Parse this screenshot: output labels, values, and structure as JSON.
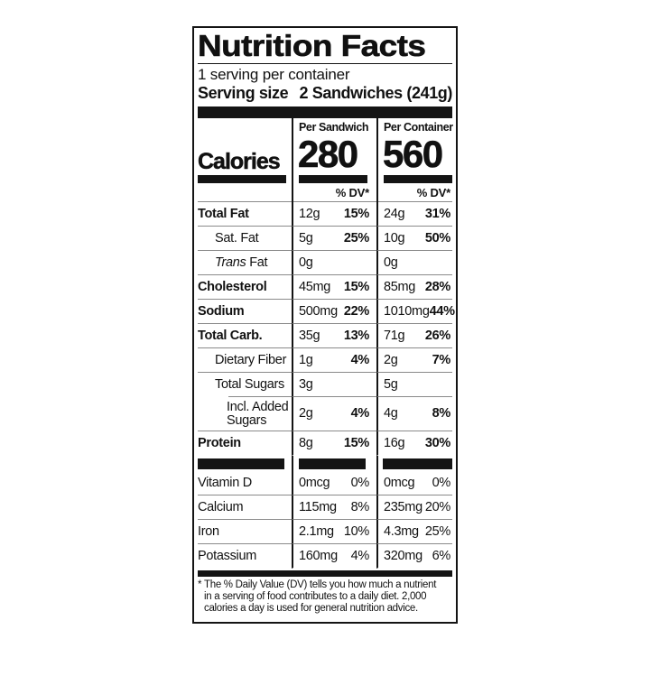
{
  "title": "Nutrition Facts",
  "servings_line": "1 serving per container",
  "serving_size": {
    "label": "Serving size",
    "value": "2 Sandwiches (241g)"
  },
  "calories": {
    "label": "Calories",
    "dv_note": "% DV*",
    "columns": [
      {
        "header": "Per Sandwich",
        "value": "280"
      },
      {
        "header": "Per Container",
        "value": "560"
      }
    ]
  },
  "nutrients": [
    {
      "name": "Total Fat",
      "bold": true,
      "indent": 0,
      "sep": "full",
      "cols": [
        {
          "amount": "12g",
          "dv": "15%"
        },
        {
          "amount": "24g",
          "dv": "31%"
        }
      ]
    },
    {
      "name": "Sat. Fat",
      "bold": false,
      "indent": 1,
      "sep": "full",
      "cols": [
        {
          "amount": "5g",
          "dv": "25%"
        },
        {
          "amount": "10g",
          "dv": "50%"
        }
      ]
    },
    {
      "name": " Fat",
      "name_italic": "Trans",
      "bold": false,
      "indent": 1,
      "sep": "full",
      "cols": [
        {
          "amount": "0g",
          "dv": ""
        },
        {
          "amount": "0g",
          "dv": ""
        }
      ]
    },
    {
      "name": "Cholesterol",
      "bold": true,
      "indent": 0,
      "sep": "full",
      "cols": [
        {
          "amount": "45mg",
          "dv": "15%"
        },
        {
          "amount": "85mg",
          "dv": "28%"
        }
      ]
    },
    {
      "name": "Sodium",
      "bold": true,
      "indent": 0,
      "sep": "full",
      "cols": [
        {
          "amount": "500mg",
          "dv": "22%"
        },
        {
          "amount": "1010mg",
          "dv": "44%"
        }
      ]
    },
    {
      "name": "Total Carb.",
      "bold": true,
      "indent": 0,
      "sep": "full",
      "cols": [
        {
          "amount": "35g",
          "dv": "13%"
        },
        {
          "amount": "71g",
          "dv": "26%"
        }
      ]
    },
    {
      "name": "Dietary Fiber",
      "bold": false,
      "indent": 1,
      "sep": "full",
      "cols": [
        {
          "amount": "1g",
          "dv": "4%"
        },
        {
          "amount": "2g",
          "dv": "7%"
        }
      ]
    },
    {
      "name": "Total Sugars",
      "bold": false,
      "indent": 1,
      "sep": "indent",
      "cols": [
        {
          "amount": "3g",
          "dv": ""
        },
        {
          "amount": "5g",
          "dv": ""
        }
      ]
    },
    {
      "name": "Incl. Added Sugars",
      "bold": false,
      "indent": 2,
      "sep": "full",
      "tall": true,
      "cols": [
        {
          "amount": "2g",
          "dv": "4%"
        },
        {
          "amount": "4g",
          "dv": "8%"
        }
      ]
    },
    {
      "name": "Protein",
      "bold": true,
      "indent": 0,
      "sep": "none",
      "cols": [
        {
          "amount": "8g",
          "dv": "15%"
        },
        {
          "amount": "16g",
          "dv": "30%"
        }
      ]
    }
  ],
  "micronutrients": [
    {
      "name": "Vitamin D",
      "sep": "full",
      "cols": [
        {
          "amount": "0mcg",
          "dv": "0%"
        },
        {
          "amount": "0mcg",
          "dv": "0%"
        }
      ]
    },
    {
      "name": "Calcium",
      "sep": "full",
      "cols": [
        {
          "amount": "115mg",
          "dv": "8%"
        },
        {
          "amount": "235mg",
          "dv": "20%"
        }
      ]
    },
    {
      "name": "Iron",
      "sep": "full",
      "cols": [
        {
          "amount": "2.1mg",
          "dv": "10%"
        },
        {
          "amount": "4.3mg",
          "dv": "25%"
        }
      ]
    },
    {
      "name": "Potassium",
      "sep": "none",
      "cols": [
        {
          "amount": "160mg",
          "dv": "4%"
        },
        {
          "amount": "320mg",
          "dv": "6%"
        }
      ]
    }
  ],
  "footnote": {
    "star": "*",
    "lines": [
      "The % Daily Value (DV) tells you how much a nutrient",
      "in a serving of food contributes to a daily diet. 2,000",
      "calories a day is used for general nutrition advice."
    ]
  },
  "colors": {
    "text": "#111111",
    "hairline": "#8a8a8a",
    "bar": "#141414",
    "background": "#ffffff"
  }
}
